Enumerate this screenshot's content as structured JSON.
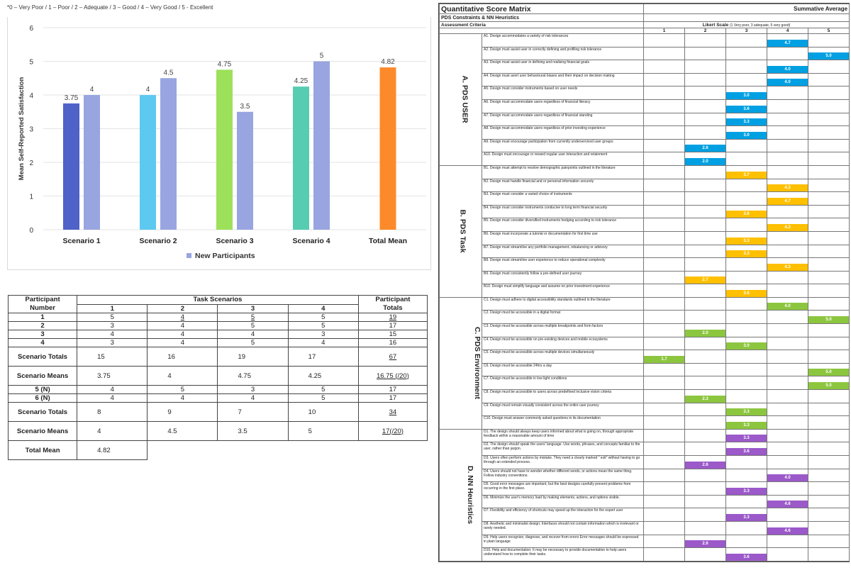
{
  "scale_note": "*0 – Very Poor / 1 – Poor / 2 – Adequate / 3 – Good / 4 – Very Good / 5 - Excellent",
  "chart_data": {
    "type": "bar",
    "categories": [
      "Scenario 1",
      "Scenario 2",
      "Scenario 3",
      "Scenario 4",
      "Total Mean"
    ],
    "ylabel": "Mean Self-Reported Satisfaction",
    "ylim": [
      0,
      6
    ],
    "yticks": [
      0,
      1,
      2,
      3,
      4,
      5,
      6
    ],
    "grid": true,
    "legend_position": "bottom",
    "legend_label": "New Participants",
    "bars": [
      {
        "category": "Scenario 1",
        "value": 3.75,
        "label": "3.75",
        "color": "#4e62c8"
      },
      {
        "category": "Scenario 1",
        "value": 4,
        "label": "4",
        "color": "#98a5e0"
      },
      {
        "category": "Scenario 2",
        "value": 4,
        "label": "4",
        "color": "#5ec9f0"
      },
      {
        "category": "Scenario 2",
        "value": 4.5,
        "label": "4.5",
        "color": "#98a5e0"
      },
      {
        "category": "Scenario 3",
        "value": 4.75,
        "label": "4.75",
        "color": "#9de05a"
      },
      {
        "category": "Scenario 3",
        "value": 3.5,
        "label": "3.5",
        "color": "#98a5e0"
      },
      {
        "category": "Scenario 4",
        "value": 4.25,
        "label": "4.25",
        "color": "#56ccb0"
      },
      {
        "category": "Scenario 4",
        "value": 5,
        "label": "5",
        "color": "#98a5e0"
      },
      {
        "category": "Total Mean",
        "value": 4.82,
        "label": "4.82",
        "color": "#fd8a2a"
      }
    ]
  },
  "participant_table": {
    "h_participant": "Participant",
    "h_number": "Number",
    "h_task": "Task Scenarios",
    "h_totals1": "Participant",
    "h_totals2": "Totals",
    "cols": [
      "1",
      "2",
      "3",
      "4"
    ],
    "rows": [
      {
        "label": "1",
        "v": [
          "5",
          "4",
          "5",
          "5"
        ],
        "total": "19",
        "ul": [
          false,
          true,
          true,
          false
        ],
        "ult": true
      },
      {
        "label": "2",
        "v": [
          "3",
          "4",
          "5",
          "5"
        ],
        "total": "17",
        "ul": [
          false,
          false,
          false,
          false
        ],
        "ult": false
      },
      {
        "label": "3",
        "v": [
          "4",
          "4",
          "4",
          "3"
        ],
        "total": "15",
        "ul": [
          false,
          false,
          false,
          false
        ],
        "ult": false
      },
      {
        "label": "4",
        "v": [
          "3",
          "4",
          "5",
          "4"
        ],
        "total": "16",
        "ul": [
          false,
          false,
          false,
          false
        ],
        "ult": false
      },
      {
        "label": "Scenario Totals",
        "v": [
          "15",
          "16",
          "19",
          "17"
        ],
        "total": "67",
        "tall": true,
        "ult": true
      },
      {
        "label": "Scenario Means",
        "v": [
          "3.75",
          "4",
          "4.75",
          "4.25"
        ],
        "total": "16.75 (/20)",
        "tall": true,
        "ult": true
      },
      {
        "label": "5 (N)",
        "v": [
          "4",
          "5",
          "3",
          "5"
        ],
        "total": "17",
        "ult": false
      },
      {
        "label": "6 (N)",
        "v": [
          "4",
          "4",
          "4",
          "5"
        ],
        "total": "17",
        "ult": false
      },
      {
        "label": "Scenario Totals",
        "v": [
          "8",
          "9",
          "7",
          "10"
        ],
        "total": "34",
        "tall": true,
        "ult": true
      },
      {
        "label": "Scenario Means",
        "v": [
          "4",
          "4.5",
          "3.5",
          "5"
        ],
        "total": "17(/20)",
        "tall": true,
        "ult": true
      }
    ],
    "total_mean_label": "Total Mean",
    "total_mean_value": "4.82"
  },
  "matrix": {
    "title": "Quantitative Score Matrix",
    "summative": "Summative Average",
    "subtitle": "PDS Constraints & NN Heuristics",
    "assessment": "Assessment Criteria",
    "likert": "Likert Scale",
    "likert_note": "(1 Very poor, 3 adequate, 5 very good)",
    "scale": [
      "1",
      "2",
      "3",
      "4",
      "5"
    ],
    "sections": [
      {
        "name": "A. PDS USER",
        "color": "#00a0e3",
        "items": [
          {
            "t": "A1. Design accommodates a variety of risk tolerances",
            "s": 4,
            "v": "4.7"
          },
          {
            "t": "A2. Design must assist user in correctly defining and profiling risk tolerance",
            "s": 5,
            "v": "5.0"
          },
          {
            "t": "A3. Design must assist user in defining and realising financial goals",
            "s": 4,
            "v": "4.0"
          },
          {
            "t": "A4. Design must avert user behavioural biases and their impact on decision making",
            "s": 4,
            "v": "4.0"
          },
          {
            "t": "A5. Design must consider instruments based on user needs",
            "s": 3,
            "v": "3.0"
          },
          {
            "t": "A6. Design must accommodate users regardless of financial literacy",
            "s": 3,
            "v": "3.6"
          },
          {
            "t": "A7. Design must accommodate users regardless of financial standing",
            "s": 3,
            "v": "3.3"
          },
          {
            "t": "A8. Design must accommodate users regardless of prior investing experience",
            "s": 3,
            "v": "3.0"
          },
          {
            "t": "A9. Design must encourage participation from currently underserviced user groups",
            "s": 2,
            "v": "2.6"
          },
          {
            "t": "A10. Design must encourage or reward regular user interaction and retainment",
            "s": 2,
            "v": "2.0"
          }
        ]
      },
      {
        "name": "B. PDS Task",
        "color": "#ffc000",
        "items": [
          {
            "t": "B1. Design must attempt to resolve demographic painpoints outlined in the literature",
            "s": 3,
            "v": "3.7"
          },
          {
            "t": "B2. Design must handle financial and or personal information securely",
            "s": 4,
            "v": "4.3"
          },
          {
            "t": "B3. Design must consider a varied choice of instruments",
            "s": 4,
            "v": "4.7"
          },
          {
            "t": "B4. Design must consider instruments conducive to long term financial security",
            "s": 3,
            "v": "3.6"
          },
          {
            "t": "B5. Design must consider diversified instruments hedging according to risk tolerance",
            "s": 4,
            "v": "4.3"
          },
          {
            "t": "B6. Design must incorporate a tutorial or documentation for first time use",
            "s": 3,
            "v": "3.3"
          },
          {
            "t": "B7. Design must streamline any portfolio management, rebalancing or advisory",
            "s": 3,
            "v": "3.3"
          },
          {
            "t": "B8. Design must streamline user experience to reduce operational complexity",
            "s": 4,
            "v": "4.3"
          },
          {
            "t": "B9. Design must consistently follow a pre-defined user journey",
            "s": 2,
            "v": "2.7"
          },
          {
            "t": "B10. Design must simplify language and assume no prior investment experience",
            "s": 3,
            "v": "3.6"
          }
        ]
      },
      {
        "name": "C. PDS Environment",
        "color": "#8cc63f",
        "items": [
          {
            "t": "C1. Design must adhere to digital accessibility standards outlined in the literature",
            "s": 4,
            "v": "4.0"
          },
          {
            "t": "C2. Design must be accessible in a digital format",
            "s": 5,
            "v": "5.0"
          },
          {
            "t": "C3. Design must be accessible across multiple breakpoints and form factors",
            "s": 2,
            "v": "2.0"
          },
          {
            "t": "C4. Design must be accessible on pre-existing devices and mobile ecosystems",
            "s": 3,
            "v": "3.0"
          },
          {
            "t": "C5. Design must be accessible across multiple devices simultaneously",
            "s": 1,
            "v": "1.7"
          },
          {
            "t": "C6. Design must be accessible 24hrs a day",
            "s": 5,
            "v": "5.0"
          },
          {
            "t": "C7. Design must be accessible in low light conditions",
            "s": 5,
            "v": "5.0"
          },
          {
            "t": "C8. Design must be accessible to users across predefined inclusive vision criteria",
            "s": 2,
            "v": "2.3"
          },
          {
            "t": "C9. Design must remain visually consistent across the entire user journey",
            "s": 3,
            "v": "3.3"
          },
          {
            "t": "C10. Design must answer commonly asked questions in its documentation",
            "s": 3,
            "v": "3.3"
          }
        ]
      },
      {
        "name": "D. NN Heuristics",
        "color": "#9b59c9",
        "items": [
          {
            "t": "D1. The design should always keep users informed about what is going on, through appropriate feedback within a reasonable amount of time",
            "s": 3,
            "v": "3.3"
          },
          {
            "t": "D2. The design should speak the users' language. Use words, phrases, and concepts familiar to the user, rather than jargon.",
            "s": 3,
            "v": "3.6"
          },
          {
            "t": "D3. Users often perform actions by mistake. They need a clearly marked \" exit\" without having to go through an extended process.",
            "s": 2,
            "v": "2.6"
          },
          {
            "t": "D4. Users should not have to wonder whether different words, or actions mean the same thing. Follow industry conventions.",
            "s": 4,
            "v": "4.0"
          },
          {
            "t": "D5. Good error messages are important, but the best designs carefully prevent problems from occurring in the first place.",
            "s": 3,
            "v": "3.3"
          },
          {
            "t": "D6. Minimize the user's memory load by making elements, actions, and options visible.",
            "s": 4,
            "v": "4.6"
          },
          {
            "t": "D7. Flexibility and efficiency of shortcuts may speed up the interaction for the expert user",
            "s": 3,
            "v": "3.3"
          },
          {
            "t": "D8. Aesthetic and minimalist design; Interfaces should not contain information which is irrelevant or rarely needed.",
            "s": 4,
            "v": "4.6"
          },
          {
            "t": "D9. Help users recognize, diagnose, and recover from errors Error messages should be expressed in plain language",
            "s": 2,
            "v": "2.6"
          },
          {
            "t": "D10. Help and documentation; It may be necessary to provide documentation to help users understand how to complete their tasks.",
            "s": 3,
            "v": "3.6"
          }
        ]
      }
    ]
  }
}
